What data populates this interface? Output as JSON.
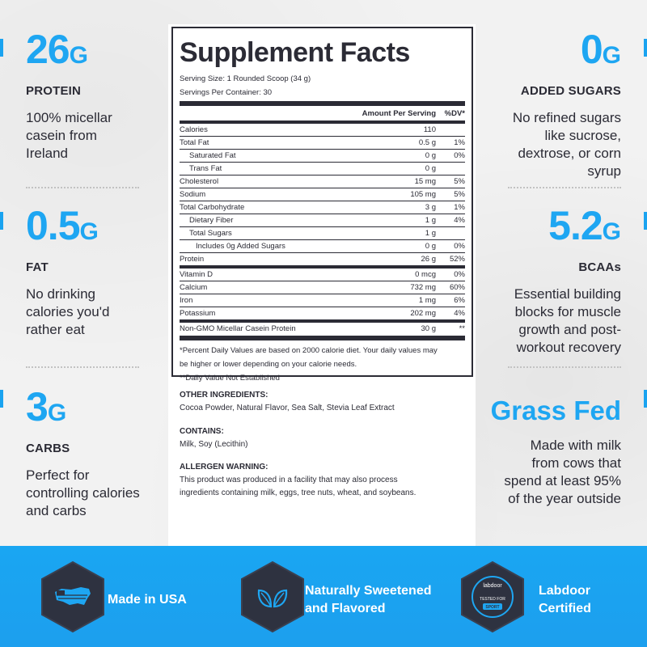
{
  "stats": {
    "protein": {
      "value": "26",
      "unit": "G",
      "label": "PROTEIN",
      "desc": [
        "100% micellar",
        "casein from",
        "Ireland"
      ]
    },
    "fat": {
      "value": "0.5",
      "unit": "G",
      "label": "FAT",
      "desc": [
        "No drinking",
        "calories you'd",
        "rather eat"
      ]
    },
    "carbs": {
      "value": "3",
      "unit": "G",
      "label": "CARBS",
      "desc": [
        "Perfect for",
        "controlling calories",
        "and carbs"
      ]
    },
    "sugars": {
      "value": "0",
      "unit": "G",
      "label": "ADDED SUGARS",
      "desc": [
        "No refined sugars",
        "like sucrose,",
        "dextrose, or corn",
        "syrup"
      ]
    },
    "bcaas": {
      "value": "5.2",
      "unit": "G",
      "label": "BCAAs",
      "desc": [
        "Essential building",
        "blocks for muscle",
        "growth and post-",
        "workout recovery"
      ]
    },
    "grassfed": {
      "value": "Grass Fed",
      "desc": [
        "Made with milk",
        "from cows that",
        "spend at least 95%",
        "of the year outside"
      ]
    }
  },
  "facts": {
    "title": "Supplement Facts",
    "serving_size": "Serving Size: 1 Rounded Scoop (34 g)",
    "servings_per_container": "Servings Per Container: 30",
    "col_amount": "Amount Per Serving",
    "col_dv": "%DV*",
    "rows": [
      {
        "name": "Calories",
        "amount": "110",
        "dv": ""
      },
      {
        "name": "Total Fat",
        "amount": "0.5 g",
        "dv": "1%"
      },
      {
        "name": "Saturated Fat",
        "amount": "0 g",
        "dv": "0%"
      },
      {
        "name": "Trans Fat",
        "amount": "0 g",
        "dv": ""
      },
      {
        "name": "Cholesterol",
        "amount": "15 mg",
        "dv": "5%"
      },
      {
        "name": "Sodium",
        "amount": "105 mg",
        "dv": "5%"
      },
      {
        "name": "Total Carbohydrate",
        "amount": "3 g",
        "dv": "1%"
      },
      {
        "name": "Dietary Fiber",
        "amount": "1 g",
        "dv": "4%"
      },
      {
        "name": "Total Sugars",
        "amount": "1 g",
        "dv": ""
      },
      {
        "name": "Includes 0g Added Sugars",
        "amount": "0 g",
        "dv": "0%"
      },
      {
        "name": "Protein",
        "amount": "26 g",
        "dv": "52%"
      },
      {
        "name": "Vitamin D",
        "amount": "0 mcg",
        "dv": "0%"
      },
      {
        "name": "Calcium",
        "amount": "732 mg",
        "dv": "60%"
      },
      {
        "name": "Iron",
        "amount": "1 mg",
        "dv": "6%"
      },
      {
        "name": "Potassium",
        "amount": "202 mg",
        "dv": "4%"
      },
      {
        "name": "Non-GMO Micellar Casein Protein",
        "amount": "30 g",
        "dv": "**"
      }
    ],
    "footnote1": "*Percent Daily Values are based on 2000 calorie diet. Your daily values may",
    "footnote2": "be higher or lower depending on your calorie needs.",
    "footnote3": "**Daily Value Not Established"
  },
  "ingredients": {
    "other_heading": "OTHER INGREDIENTS:",
    "other_text": "Cocoa Powder, Natural Flavor, Sea Salt, Stevia Leaf Extract",
    "contains_heading": "CONTAINS:",
    "contains_text": "Milk, Soy (Lecithin)",
    "allergen_heading": "ALLERGEN WARNING:",
    "allergen_text1": "This product was produced in a facility that may also process",
    "allergen_text2": "ingredients containing milk, eggs, tree nuts, wheat, and soybeans."
  },
  "badges": {
    "usa": {
      "label": "Made in USA",
      "icon": "usa-flag-map-icon"
    },
    "sweet": {
      "label1": "Naturally Sweetened",
      "label2": "and Flavored",
      "icon": "leaves-icon"
    },
    "labdoor": {
      "label1": "Labdoor",
      "label2": "Certified",
      "icon": "labdoor-seal-icon",
      "seal_top": "labdoor",
      "seal_mid": "TESTED FOR",
      "seal_bottom": "SPORT"
    }
  },
  "colors": {
    "accent": "#1ea6f2",
    "text": "#2b2b35",
    "badge": "#2e3240"
  }
}
